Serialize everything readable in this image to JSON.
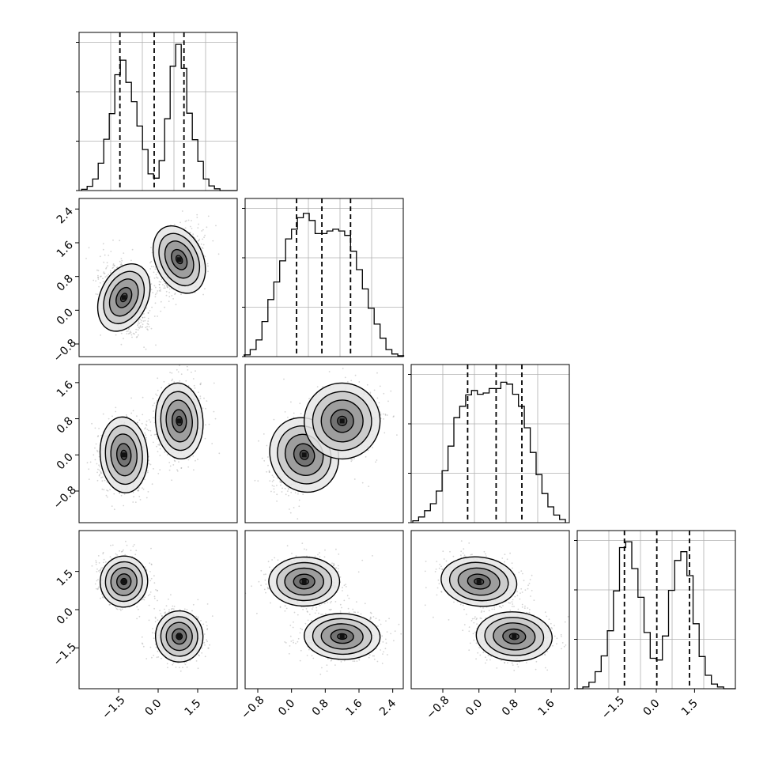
{
  "figure": {
    "type": "corner-plot",
    "n_params": 4,
    "quantile_line_style": "dashed",
    "grid": true
  },
  "chart_data": [
    {
      "type": "bar",
      "panel": "hist-1",
      "x": [
        -2.8,
        -2.59,
        -2.38,
        -2.17,
        -1.96,
        -1.75,
        -1.54,
        -1.33,
        -1.12,
        -0.91,
        -0.7,
        -0.49,
        -0.28,
        -0.07,
        0.14,
        0.35,
        0.56,
        0.77,
        0.98,
        1.19,
        1.4,
        1.61,
        1.82,
        2.03,
        2.24,
        2.45,
        2.66,
        2.87
      ],
      "values": [
        0.3,
        1.0,
        2.7,
        6.4,
        12.0,
        18.0,
        27.1,
        30.5,
        25.3,
        20.8,
        15.1,
        9.6,
        3.9,
        2.9,
        7.0,
        16.8,
        29.1,
        34.2,
        28.6,
        18.1,
        11.9,
        6.8,
        2.7,
        1.1,
        0.4,
        0,
        0,
        0
      ],
      "xlim": [
        -3.0,
        3.0
      ],
      "ylim": [
        0,
        37
      ],
      "quantiles": [
        -1.45,
        -0.15,
        0.98
      ]
    },
    {
      "type": "bar",
      "panel": "hist-2",
      "x": [
        -1.05,
        -0.91,
        -0.77,
        -0.63,
        -0.49,
        -0.35,
        -0.21,
        -0.07,
        0.07,
        0.21,
        0.35,
        0.49,
        0.63,
        0.77,
        0.91,
        1.05,
        1.19,
        1.33,
        1.47,
        1.61,
        1.75,
        1.89,
        2.03,
        2.17,
        2.31,
        2.45,
        2.59
      ],
      "values": [
        0.2,
        0.8,
        1.9,
        4.0,
        6.5,
        8.5,
        10.9,
        13.4,
        14.5,
        15.8,
        16.3,
        15.5,
        14.0,
        14.0,
        14.3,
        14.5,
        14.3,
        13.8,
        12.0,
        9.9,
        7.7,
        5.5,
        3.7,
        2.1,
        0.8,
        0.3,
        0.1
      ],
      "xlim": [
        -1.1,
        2.65
      ],
      "ylim": [
        0,
        18
      ],
      "quantiles": [
        0.12,
        0.72,
        1.4
      ]
    },
    {
      "type": "bar",
      "panel": "hist-3",
      "x": [
        -1.4,
        -1.27,
        -1.14,
        -1.01,
        -0.88,
        -0.75,
        -0.62,
        -0.49,
        -0.36,
        -0.23,
        -0.1,
        0.03,
        0.16,
        0.29,
        0.42,
        0.55,
        0.68,
        0.81,
        0.94,
        1.07,
        1.2,
        1.33,
        1.46,
        1.59,
        1.72,
        1.85
      ],
      "values": [
        0.3,
        0.9,
        1.9,
        3.0,
        5.0,
        8.2,
        12.1,
        16.6,
        18.4,
        20.2,
        20.9,
        20.3,
        20.5,
        21.2,
        21.2,
        22.2,
        21.9,
        20.3,
        18.4,
        15.0,
        11.1,
        7.6,
        4.6,
        2.5,
        1.2,
        0.5
      ],
      "xlim": [
        -1.5,
        2.0
      ],
      "ylim": [
        0,
        25
      ],
      "quantiles": [
        -0.25,
        0.38,
        0.95
      ]
    },
    {
      "type": "bar",
      "panel": "hist-4",
      "x": [
        -3.0,
        -2.76,
        -2.52,
        -2.28,
        -2.04,
        -1.8,
        -1.56,
        -1.32,
        -1.08,
        -0.84,
        -0.6,
        -0.36,
        -0.12,
        0.12,
        0.36,
        0.6,
        0.84,
        1.08,
        1.32,
        1.56,
        1.8,
        2.04,
        2.28,
        2.52,
        2.76,
        3.0
      ],
      "values": [
        0,
        0.3,
        1.1,
        2.9,
        5.6,
        9.9,
        16.7,
        24.1,
        25.1,
        20.5,
        15.6,
        9.6,
        5.2,
        4.9,
        9.0,
        16.8,
        21.9,
        23.4,
        19.3,
        11.1,
        5.5,
        2.3,
        0.8,
        0.3,
        0,
        0
      ],
      "xlim": [
        -3.1,
        3.1
      ],
      "ylim": [
        0,
        27
      ],
      "quantiles": [
        -1.25,
        0.02,
        1.3
      ]
    },
    {
      "type": "scatter",
      "panel": "2d-x1-x2",
      "xlim": [
        -3.0,
        3.0
      ],
      "ylim": [
        -1.1,
        2.65
      ],
      "yticks": [
        -0.8,
        0.0,
        0.8,
        1.6,
        2.4
      ],
      "yticklabels": [
        "−0.8",
        "0.0",
        "0.8",
        "1.6",
        "2.4"
      ],
      "clusters": [
        {
          "mx": -1.3,
          "my": 0.3,
          "sx": 0.45,
          "sy": 0.42,
          "rho": -0.35
        },
        {
          "mx": 0.8,
          "my": 1.2,
          "sx": 0.45,
          "sy": 0.42,
          "rho": 0.35
        }
      ]
    },
    {
      "type": "scatter",
      "panel": "2d-x1-x3",
      "xlim": [
        -3.0,
        3.0
      ],
      "ylim": [
        -1.5,
        2.0
      ],
      "yticks": [
        -0.8,
        0.0,
        0.8,
        1.6
      ],
      "yticklabels": [
        "−0.8",
        "0.0",
        "0.8",
        "1.6"
      ],
      "clusters": [
        {
          "mx": -1.3,
          "my": 0.0,
          "sx": 0.45,
          "sy": 0.42,
          "rho": 0.05
        },
        {
          "mx": 0.8,
          "my": 0.75,
          "sx": 0.45,
          "sy": 0.42,
          "rho": 0.05
        }
      ]
    },
    {
      "type": "scatter",
      "panel": "2d-x1-x4",
      "xlim": [
        -3.0,
        3.0
      ],
      "ylim": [
        -3.1,
        3.1
      ],
      "xticks": [
        -1.5,
        0.0,
        1.5
      ],
      "xticklabels": [
        "−1.5",
        "0.0",
        "1.5"
      ],
      "yticks": [
        -1.5,
        0.0,
        1.5
      ],
      "yticklabels": [
        "−1.5",
        "0.0",
        "1.5"
      ],
      "clusters": [
        {
          "mx": -1.3,
          "my": 1.1,
          "sx": 0.45,
          "sy": 0.5,
          "rho": -0.1
        },
        {
          "mx": 0.8,
          "my": -1.05,
          "sx": 0.45,
          "sy": 0.5,
          "rho": 0.05
        }
      ]
    },
    {
      "type": "scatter",
      "panel": "2d-x2-x3",
      "xlim": [
        -1.1,
        2.65
      ],
      "ylim": [
        -1.5,
        2.0
      ],
      "clusters": [
        {
          "mx": 0.3,
          "my": 0.0,
          "sx": 0.4,
          "sy": 0.42,
          "rho": 0.45
        },
        {
          "mx": 1.2,
          "my": 0.75,
          "sx": 0.45,
          "sy": 0.42,
          "rho": 0.15
        }
      ]
    },
    {
      "type": "scatter",
      "panel": "2d-x2-x4",
      "xlim": [
        -1.1,
        2.65
      ],
      "ylim": [
        -3.1,
        3.1
      ],
      "xticks": [
        -0.8,
        0.0,
        0.8,
        1.6,
        2.4
      ],
      "xticklabels": [
        "−0.8",
        "0.0",
        "0.8",
        "1.6",
        "2.4"
      ],
      "clusters": [
        {
          "mx": 0.3,
          "my": 1.1,
          "sx": 0.42,
          "sy": 0.48,
          "rho": 0.0
        },
        {
          "mx": 1.2,
          "my": -1.05,
          "sx": 0.45,
          "sy": 0.45,
          "rho": -0.05
        }
      ]
    },
    {
      "type": "scatter",
      "panel": "2d-x3-x4",
      "xlim": [
        -1.5,
        2.0
      ],
      "ylim": [
        -3.1,
        3.1
      ],
      "xticks": [
        -0.8,
        0.0,
        0.8,
        1.6
      ],
      "xticklabels": [
        "−0.8",
        "0.0",
        "0.8",
        "1.6"
      ],
      "clusters": [
        {
          "mx": 0.0,
          "my": 1.1,
          "sx": 0.42,
          "sy": 0.48,
          "rho": -0.2
        },
        {
          "mx": 0.78,
          "my": -1.05,
          "sx": 0.42,
          "sy": 0.48,
          "rho": -0.1
        }
      ]
    }
  ],
  "colors": {
    "points": "#666666",
    "density": "#000000",
    "grid": "#b0b0b0",
    "line": "#000000"
  }
}
